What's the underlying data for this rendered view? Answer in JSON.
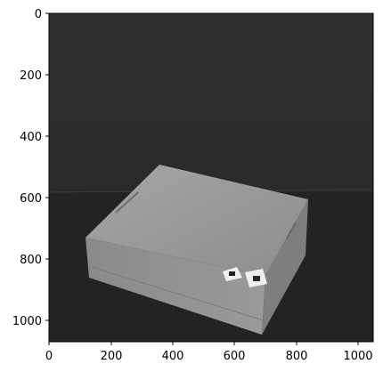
{
  "axes": {
    "x_ticks": [
      "0",
      "200",
      "400",
      "600",
      "800",
      "1000"
    ],
    "y_ticks": [
      "0",
      "200",
      "400",
      "600",
      "800",
      "1000"
    ],
    "xlim": [
      0,
      1050
    ],
    "ylim": [
      1050,
      0
    ],
    "grid": false
  },
  "image": {
    "description_colors": {
      "background_top": "#2f2f2f",
      "background_bottom": "#1e1e1e",
      "table_surface": "#222222",
      "box_top": "#9a9a9a",
      "box_front": "#8c8c8c",
      "box_side": "#7a7a7a",
      "marker_paper": "#f2f2f2",
      "marker_center": "#222222"
    },
    "colormap": "grayscale"
  }
}
